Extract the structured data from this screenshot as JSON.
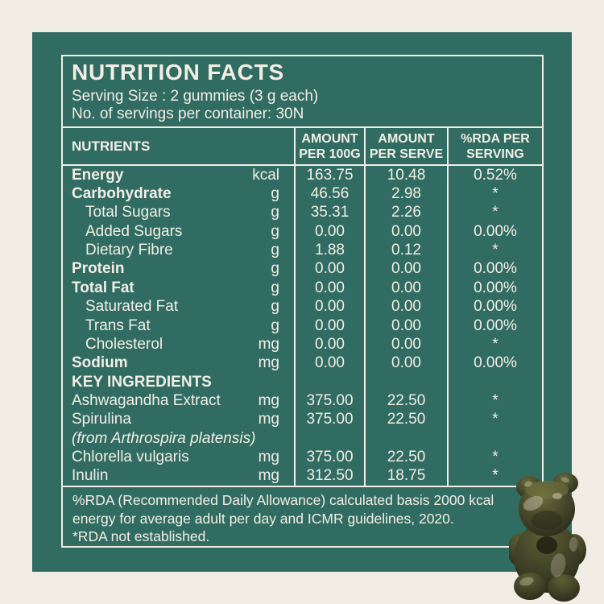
{
  "colors": {
    "background": "#f1ede4",
    "panel": "#316c63",
    "text": "#f2eee4",
    "line": "#f2eee4",
    "gummy_dark": "#2a2b18",
    "gummy_mid": "#42442a",
    "gummy_light": "#6a6c3c"
  },
  "label": {
    "title": "NUTRITION FACTS",
    "serving_size": "Serving Size : 2 gummies (3 g each)",
    "servings_per_container": "No. of servings per container: 30N"
  },
  "table": {
    "columns": [
      "NUTRIENTS",
      "AMOUNT PER 100G",
      "AMOUNT PER SERVE",
      "%RDA PER SERVING"
    ],
    "rows": [
      {
        "name": "Energy",
        "unit": "kcal",
        "per100g": "163.75",
        "perServe": "10.48",
        "rda": "0.52%",
        "style": "main"
      },
      {
        "name": "Carbohydrate",
        "unit": "g",
        "per100g": "46.56",
        "perServe": "2.98",
        "rda": "*",
        "style": "main"
      },
      {
        "name": "Total Sugars",
        "unit": "g",
        "per100g": "35.31",
        "perServe": "2.26",
        "rda": "*",
        "style": "sub"
      },
      {
        "name": "Added Sugars",
        "unit": "g",
        "per100g": "0.00",
        "perServe": "0.00",
        "rda": "0.00%",
        "style": "sub"
      },
      {
        "name": "Dietary Fibre",
        "unit": "g",
        "per100g": "1.88",
        "perServe": "0.12",
        "rda": "*",
        "style": "sub"
      },
      {
        "name": "Protein",
        "unit": "g",
        "per100g": "0.00",
        "perServe": "0.00",
        "rda": "0.00%",
        "style": "main"
      },
      {
        "name": "Total Fat",
        "unit": "g",
        "per100g": "0.00",
        "perServe": "0.00",
        "rda": "0.00%",
        "style": "main"
      },
      {
        "name": "Saturated Fat",
        "unit": "g",
        "per100g": "0.00",
        "perServe": "0.00",
        "rda": "0.00%",
        "style": "sub"
      },
      {
        "name": "Trans Fat",
        "unit": "g",
        "per100g": "0.00",
        "perServe": "0.00",
        "rda": "0.00%",
        "style": "sub"
      },
      {
        "name": "Cholesterol",
        "unit": "mg",
        "per100g": "0.00",
        "perServe": "0.00",
        "rda": "*",
        "style": "sub"
      },
      {
        "name": "Sodium",
        "unit": "mg",
        "per100g": "0.00",
        "perServe": "0.00",
        "rda": "0.00%",
        "style": "main"
      },
      {
        "name": "KEY INGREDIENTS",
        "unit": "",
        "per100g": "",
        "perServe": "",
        "rda": "",
        "style": "section"
      },
      {
        "name": "Ashwagandha Extract",
        "unit": "mg",
        "per100g": "375.00",
        "perServe": "22.50",
        "rda": "*",
        "style": "normal"
      },
      {
        "name": "Spirulina",
        "unit": "mg",
        "per100g": "375.00",
        "perServe": "22.50",
        "rda": "*",
        "style": "normal"
      },
      {
        "name": "(from Arthrospira platensis)",
        "unit": "",
        "per100g": "",
        "perServe": "",
        "rda": "",
        "style": "italic"
      },
      {
        "name": "Chlorella vulgaris",
        "unit": "mg",
        "per100g": "375.00",
        "perServe": "22.50",
        "rda": "*",
        "style": "normal"
      },
      {
        "name": "Inulin",
        "unit": "mg",
        "per100g": "312.50",
        "perServe": "18.75",
        "rda": "*",
        "style": "normal"
      }
    ]
  },
  "footnote": {
    "lines": [
      "%RDA (Recommended Daily Allowance) calculated basis 2000 kcal",
      "energy for average adult per day and ICMR guidelines, 2020.",
      "*RDA not established."
    ]
  },
  "images": {
    "gummy_bear": "gummy-bear"
  }
}
